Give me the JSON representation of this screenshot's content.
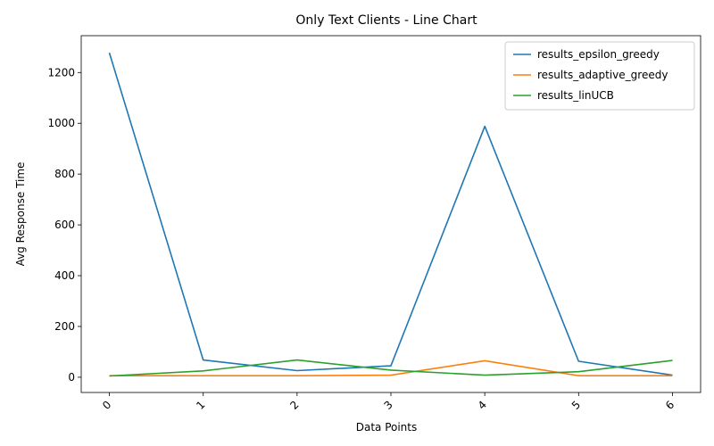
{
  "chart_data": {
    "type": "line",
    "title": "Only Text Clients - Line Chart",
    "xlabel": "Data Points",
    "ylabel": "Avg Response Time",
    "x": [
      0,
      1,
      2,
      3,
      4,
      5,
      6
    ],
    "xlim": [
      -0.3,
      6.3
    ],
    "ylim": [
      -60,
      1345
    ],
    "yticks": [
      0,
      200,
      400,
      600,
      800,
      1000,
      1200
    ],
    "grid": false,
    "legend_position": "top-right",
    "series": [
      {
        "name": "results_epsilon_greedy",
        "color": "#1f77b4",
        "values": [
          1278,
          68,
          26,
          45,
          988,
          63,
          8
        ]
      },
      {
        "name": "results_adaptive_greedy",
        "color": "#ff7f0e",
        "values": [
          6,
          6,
          6,
          8,
          65,
          6,
          6
        ]
      },
      {
        "name": "results_linUCB",
        "color": "#2ca02c",
        "values": [
          5,
          25,
          68,
          28,
          8,
          22,
          66
        ]
      }
    ]
  }
}
